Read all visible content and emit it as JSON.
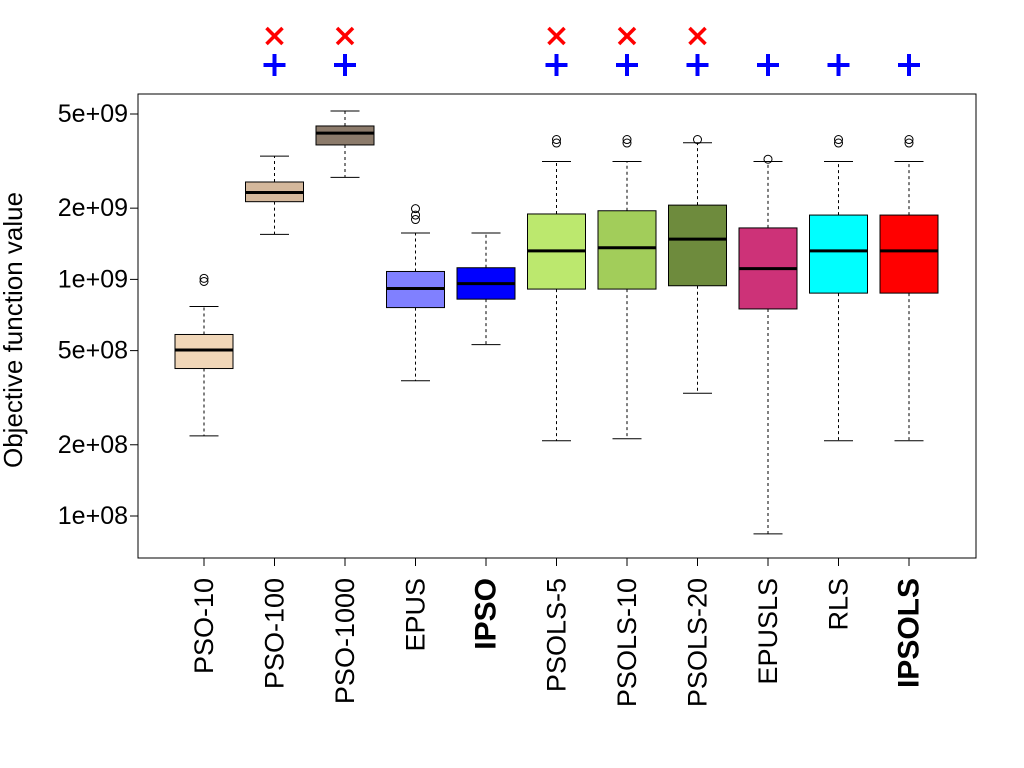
{
  "chart_data": {
    "type": "boxplot",
    "title": "",
    "xlabel": "",
    "ylabel": "Objective function value",
    "yscale": "log",
    "ylim": [
      70000000,
      6000000000
    ],
    "yticks": [
      {
        "value": 100000000,
        "label": "1e+08"
      },
      {
        "value": 200000000,
        "label": "2e+08"
      },
      {
        "value": 500000000,
        "label": "5e+08"
      },
      {
        "value": 1000000000,
        "label": "1e+09"
      },
      {
        "value": 2000000000,
        "label": "2e+09"
      },
      {
        "value": 5000000000,
        "label": "5e+09"
      }
    ],
    "categories": [
      "PSO-10",
      "PSO-100",
      "PSO-1000",
      "EPUS",
      "IPSO",
      "PSOLS-5",
      "PSOLS-10",
      "PSOLS-20",
      "EPUSLS",
      "RLS",
      "IPSOLS"
    ],
    "bold_categories": [
      "IPSO",
      "IPSOLS"
    ],
    "boxes": [
      {
        "name": "PSO-10",
        "color": "#f0d6b8",
        "whisker_low": 218000000,
        "q1": 420000000,
        "median": 503000000,
        "q3": 585000000,
        "whisker_high": 768000000,
        "outliers": [
          980000000,
          1010000000
        ]
      },
      {
        "name": "PSO-100",
        "color": "#d4b89c",
        "whisker_low": 1550000000,
        "q1": 2130000000,
        "median": 2330000000,
        "q3": 2580000000,
        "whisker_high": 3320000000,
        "outliers": []
      },
      {
        "name": "PSO-1000",
        "color": "#8c7b6b",
        "whisker_low": 2700000000,
        "q1": 3700000000,
        "median": 4150000000,
        "q3": 4450000000,
        "whisker_high": 5150000000,
        "outliers": []
      },
      {
        "name": "EPUS",
        "color": "#8080ff",
        "whisker_low": 373000000,
        "q1": 760000000,
        "median": 915000000,
        "q3": 1080000000,
        "whisker_high": 1570000000,
        "outliers": [
          1790000000,
          1870000000,
          1990000000
        ]
      },
      {
        "name": "IPSO",
        "color": "#0000ff",
        "whisker_low": 530000000,
        "q1": 825000000,
        "median": 960000000,
        "q3": 1120000000,
        "whisker_high": 1570000000,
        "outliers": []
      },
      {
        "name": "PSOLS-5",
        "color": "#bce86e",
        "whisker_low": 208000000,
        "q1": 910000000,
        "median": 1320000000,
        "q3": 1890000000,
        "whisker_high": 3150000000,
        "outliers": [
          3770000000,
          3900000000
        ]
      },
      {
        "name": "PSOLS-10",
        "color": "#a2cd5a",
        "whisker_low": 212000000,
        "q1": 910000000,
        "median": 1360000000,
        "q3": 1950000000,
        "whisker_high": 3150000000,
        "outliers": [
          3770000000,
          3900000000
        ]
      },
      {
        "name": "PSOLS-20",
        "color": "#6e8b3d",
        "whisker_low": 330000000,
        "q1": 940000000,
        "median": 1480000000,
        "q3": 2060000000,
        "whisker_high": 3780000000,
        "outliers": [
          3900000000
        ]
      },
      {
        "name": "EPUSLS",
        "color": "#cd3278",
        "whisker_low": 84000000,
        "q1": 750000000,
        "median": 1110000000,
        "q3": 1650000000,
        "whisker_high": 3150000000,
        "outliers": [
          3220000000
        ]
      },
      {
        "name": "RLS",
        "color": "#00ffff",
        "whisker_low": 208000000,
        "q1": 875000000,
        "median": 1320000000,
        "q3": 1870000000,
        "whisker_high": 3150000000,
        "outliers": [
          3770000000,
          3900000000
        ]
      },
      {
        "name": "IPSOLS",
        "color": "#ff0000",
        "whisker_low": 208000000,
        "q1": 875000000,
        "median": 1320000000,
        "q3": 1870000000,
        "whisker_high": 3150000000,
        "outliers": [
          3770000000,
          3900000000
        ]
      }
    ],
    "markers": {
      "cross": {
        "symbol": "×",
        "color": "#ff0000",
        "categories": [
          "PSO-100",
          "PSO-1000",
          "PSOLS-5",
          "PSOLS-10",
          "PSOLS-20"
        ]
      },
      "plus": {
        "symbol": "+",
        "color": "#0000ff",
        "categories": [
          "PSO-100",
          "PSO-1000",
          "PSOLS-5",
          "PSOLS-10",
          "PSOLS-20",
          "EPUSLS",
          "RLS",
          "IPSOLS"
        ]
      }
    }
  }
}
